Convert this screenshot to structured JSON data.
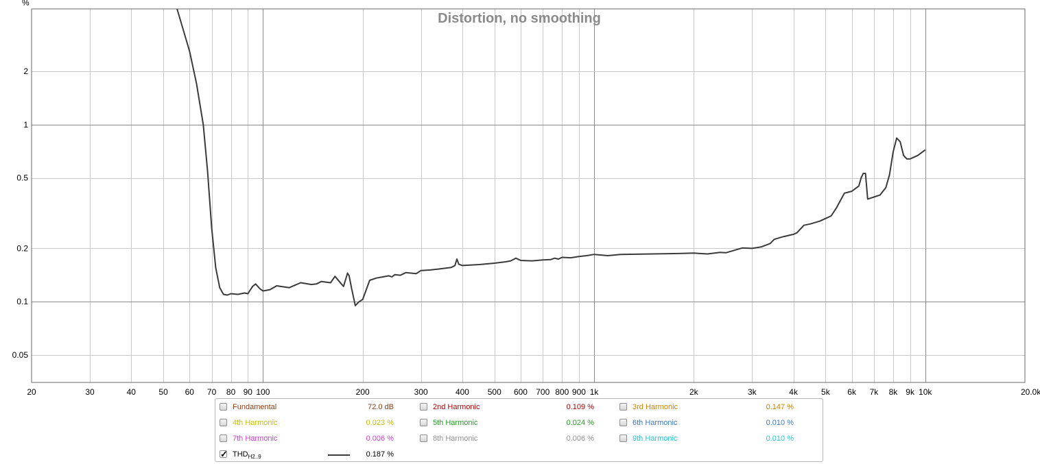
{
  "chart_data": {
    "type": "line",
    "title": "Distortion, no smoothing",
    "xlabel": "",
    "ylabel": "%",
    "x_scale": "log",
    "y_scale": "log",
    "xlim": [
      20,
      20000
    ],
    "ylim": [
      0.035,
      4.5
    ],
    "grid": true,
    "x_ticks": [
      {
        "value": 20,
        "label": "20"
      },
      {
        "value": 30,
        "label": "30"
      },
      {
        "value": 40,
        "label": "40"
      },
      {
        "value": 50,
        "label": "50"
      },
      {
        "value": 60,
        "label": "60"
      },
      {
        "value": 70,
        "label": "70"
      },
      {
        "value": 80,
        "label": "80"
      },
      {
        "value": 90,
        "label": "90"
      },
      {
        "value": 100,
        "label": "100"
      },
      {
        "value": 200,
        "label": "200"
      },
      {
        "value": 300,
        "label": "300"
      },
      {
        "value": 400,
        "label": "400"
      },
      {
        "value": 500,
        "label": "500"
      },
      {
        "value": 600,
        "label": "600"
      },
      {
        "value": 700,
        "label": "700"
      },
      {
        "value": 800,
        "label": "800"
      },
      {
        "value": 900,
        "label": "900"
      },
      {
        "value": 1000,
        "label": "1k"
      },
      {
        "value": 2000,
        "label": "2k"
      },
      {
        "value": 3000,
        "label": "3k"
      },
      {
        "value": 4000,
        "label": "4k"
      },
      {
        "value": 5000,
        "label": "5k"
      },
      {
        "value": 6000,
        "label": "6k"
      },
      {
        "value": 7000,
        "label": "7k"
      },
      {
        "value": 8000,
        "label": "8k"
      },
      {
        "value": 9000,
        "label": "9k"
      },
      {
        "value": 10000,
        "label": "10k"
      },
      {
        "value": 20000,
        "label": "20.0kHz"
      }
    ],
    "y_ticks": [
      {
        "value": 0.05,
        "label": "0.05"
      },
      {
        "value": 0.1,
        "label": "0.1"
      },
      {
        "value": 0.2,
        "label": "0.2"
      },
      {
        "value": 0.5,
        "label": "0.5"
      },
      {
        "value": 1,
        "label": "1"
      },
      {
        "value": 2,
        "label": "2"
      }
    ],
    "series": [
      {
        "name": "THD H2..9",
        "color": "#3a3a3a",
        "x": [
          55,
          60,
          63,
          66,
          68,
          70,
          72,
          74,
          76,
          78,
          80,
          84,
          88,
          90,
          93,
          95,
          98,
          100,
          105,
          110,
          120,
          130,
          140,
          145,
          150,
          160,
          165,
          170,
          175,
          178,
          180,
          182,
          185,
          190,
          195,
          200,
          210,
          220,
          230,
          240,
          245,
          250,
          260,
          270,
          280,
          290,
          300,
          320,
          340,
          370,
          380,
          385,
          390,
          400,
          450,
          500,
          540,
          560,
          580,
          600,
          650,
          700,
          740,
          760,
          780,
          800,
          850,
          900,
          950,
          1000,
          1100,
          1200,
          1500,
          1800,
          2000,
          2200,
          2400,
          2500,
          2600,
          2800,
          3000,
          3200,
          3400,
          3500,
          3700,
          4000,
          4100,
          4300,
          4500,
          4800,
          5000,
          5200,
          5400,
          5700,
          6000,
          6300,
          6400,
          6500,
          6600,
          6700,
          7000,
          7300,
          7600,
          7800,
          8000,
          8200,
          8400,
          8600,
          8800,
          9000,
          9500,
          10000
        ],
        "y": [
          4.5,
          2.6,
          1.7,
          1.0,
          0.55,
          0.26,
          0.155,
          0.12,
          0.11,
          0.109,
          0.111,
          0.11,
          0.112,
          0.111,
          0.122,
          0.126,
          0.118,
          0.115,
          0.117,
          0.123,
          0.12,
          0.128,
          0.125,
          0.126,
          0.13,
          0.128,
          0.139,
          0.13,
          0.122,
          0.135,
          0.145,
          0.14,
          0.12,
          0.095,
          0.1,
          0.103,
          0.132,
          0.136,
          0.138,
          0.14,
          0.138,
          0.142,
          0.141,
          0.146,
          0.145,
          0.144,
          0.15,
          0.151,
          0.153,
          0.156,
          0.16,
          0.174,
          0.163,
          0.16,
          0.162,
          0.165,
          0.168,
          0.17,
          0.176,
          0.171,
          0.17,
          0.172,
          0.173,
          0.176,
          0.174,
          0.178,
          0.177,
          0.18,
          0.182,
          0.185,
          0.182,
          0.185,
          0.186,
          0.187,
          0.188,
          0.186,
          0.19,
          0.189,
          0.193,
          0.201,
          0.2,
          0.204,
          0.213,
          0.225,
          0.232,
          0.24,
          0.245,
          0.27,
          0.275,
          0.285,
          0.295,
          0.305,
          0.34,
          0.41,
          0.42,
          0.45,
          0.5,
          0.53,
          0.53,
          0.38,
          0.39,
          0.4,
          0.44,
          0.52,
          0.7,
          0.84,
          0.8,
          0.67,
          0.64,
          0.64,
          0.67,
          0.72
        ]
      }
    ]
  },
  "legend": {
    "items": [
      {
        "label": "Fundamental",
        "value": "72.0 dB",
        "color": "#8b3a10",
        "checked": false
      },
      {
        "label": "2nd Harmonic",
        "value": "0.109 %",
        "color": "#b00000",
        "checked": false
      },
      {
        "label": "3rd Harmonic",
        "value": "0.147 %",
        "color": "#d08000",
        "checked": false
      },
      {
        "label": "4th Harmonic",
        "value": "0.023 %",
        "color": "#c8c000",
        "checked": false
      },
      {
        "label": "5th Harmonic",
        "value": "0.024 %",
        "color": "#20a020",
        "checked": false
      },
      {
        "label": "6th Harmonic",
        "value": "0.010 %",
        "color": "#3a78c8",
        "checked": false
      },
      {
        "label": "7th Harmonic",
        "value": "0.006 %",
        "color": "#d040d0",
        "checked": false
      },
      {
        "label": "8th Harmonic",
        "value": "0.006 %",
        "color": "#909090",
        "checked": false
      },
      {
        "label": "9th Harmonic",
        "value": "0.010 %",
        "color": "#20c8d0",
        "checked": false
      }
    ],
    "thd": {
      "label": "THD",
      "sub": "H2..9",
      "value": "0.187 %",
      "color": "#3a3a3a",
      "checked": true
    }
  }
}
